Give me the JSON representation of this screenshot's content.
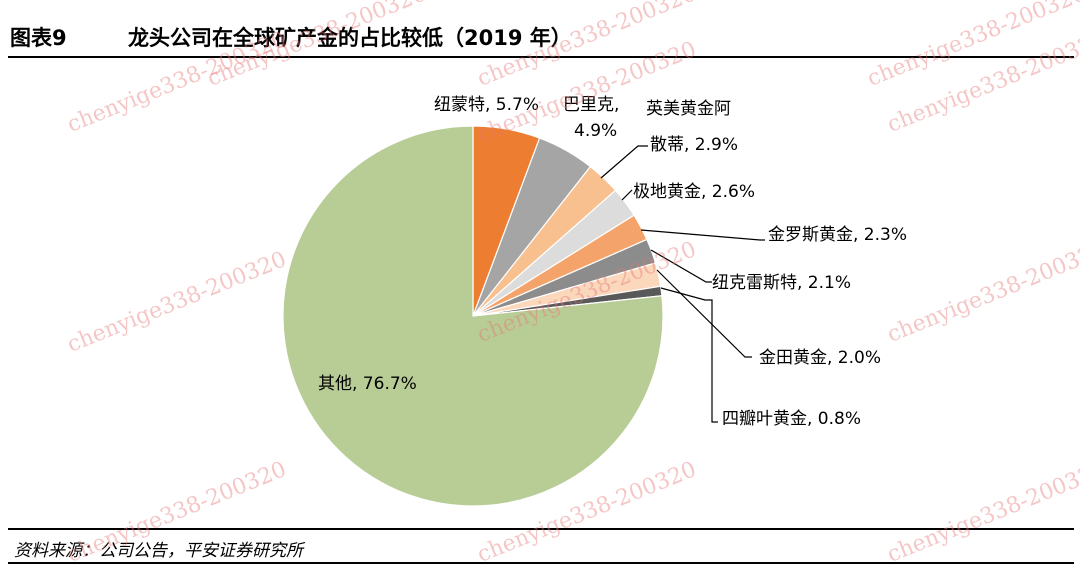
{
  "header": {
    "figure_label": "图表9",
    "title": "龙头公司在全球矿产金的占比较低（2019 年）"
  },
  "chart_data": {
    "type": "pie",
    "title": "龙头公司在全球矿产金的占比较低（2019 年）",
    "slices": [
      {
        "name": "纽蒙特",
        "value": 5.7,
        "label": "5.7%",
        "color": "#ED7D31"
      },
      {
        "name": "巴里克",
        "value": 4.9,
        "label": "4.9%",
        "color": "#A5A5A5"
      },
      {
        "name": "英美黄金阿散蒂",
        "value": 2.9,
        "label": "2.9%",
        "color": "#F8C08F"
      },
      {
        "name": "极地黄金",
        "value": 2.6,
        "label": "2.6%",
        "color": "#DCDCDC"
      },
      {
        "name": "金罗斯黄金",
        "value": 2.3,
        "label": "2.3%",
        "color": "#F4A46B"
      },
      {
        "name": "纽克雷斯特",
        "value": 2.1,
        "label": "2.1%",
        "color": "#8C8C8C"
      },
      {
        "name": "金田黄金",
        "value": 2.0,
        "label": "2.0%",
        "color": "#FBD7BB"
      },
      {
        "name": "四瓣叶黄金",
        "value": 0.8,
        "label": "0.8%",
        "color": "#595959"
      },
      {
        "name": "其他",
        "value": 76.7,
        "label": "76.7%",
        "color": "#B7CD95"
      }
    ],
    "label_texts": {
      "newmont": "纽蒙特, 5.7%",
      "barrick_1": "巴里克,",
      "barrick_2": "4.9%",
      "anglo_1": "英美黄金阿",
      "anglo_2": "散蒂, 2.9%",
      "polyus": "极地黄金, 2.6%",
      "kinross": "金罗斯黄金, 2.3%",
      "newcrest": "纽克雷斯特, 2.1%",
      "goldfields": "金田黄金, 2.0%",
      "agnico": "四瓣叶黄金, 0.8%",
      "others": "其他, 76.7%"
    }
  },
  "source_note": "资料来源：公司公告，平安证券研究所",
  "watermark": "chenyige338-200320"
}
